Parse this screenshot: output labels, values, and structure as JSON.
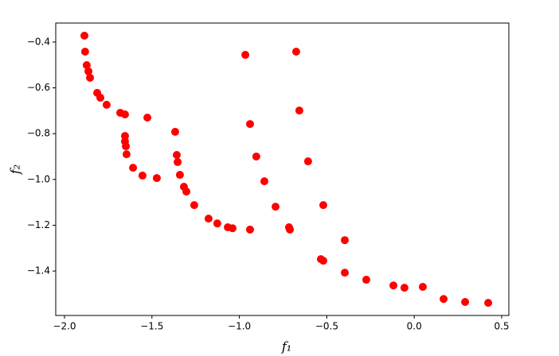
{
  "chart_data": {
    "type": "scatter",
    "xlabel": "f₁",
    "ylabel": "f₂",
    "color": "#ff0000",
    "x": [
      -1.886,
      -1.882,
      -1.873,
      -1.863,
      -1.854,
      -1.813,
      -1.795,
      -1.759,
      -1.681,
      -1.654,
      -1.526,
      -1.654,
      -1.654,
      -1.649,
      -1.645,
      -1.608,
      -1.554,
      -1.472,
      -1.367,
      -1.358,
      -1.353,
      -1.34,
      -1.317,
      -1.303,
      -1.258,
      -1.176,
      -1.126,
      -1.066,
      -1.039,
      -0.966,
      -0.939,
      -0.939,
      -0.903,
      -0.857,
      -0.793,
      -0.716,
      -0.711,
      -0.675,
      -0.657,
      -0.607,
      -0.52,
      -0.534,
      -0.52,
      -0.397,
      -0.397,
      -0.274,
      -0.119,
      -0.056,
      0.049,
      0.168,
      0.291,
      0.423
    ],
    "values": [
      -0.372,
      -0.442,
      -0.501,
      -0.528,
      -0.556,
      -0.622,
      -0.643,
      -0.674,
      -0.709,
      -0.716,
      -0.73,
      -0.81,
      -0.834,
      -0.855,
      -0.89,
      -0.949,
      -0.983,
      -0.994,
      -0.792,
      -0.893,
      -0.924,
      -0.98,
      -1.032,
      -1.053,
      -1.112,
      -1.171,
      -1.192,
      -1.209,
      -1.213,
      -0.456,
      -0.758,
      -1.219,
      -0.9,
      -1.008,
      -1.119,
      -1.209,
      -1.219,
      -0.442,
      -0.699,
      -0.921,
      -1.112,
      -1.348,
      -1.355,
      -1.265,
      -1.407,
      -1.438,
      -1.463,
      -1.473,
      -1.469,
      -1.522,
      -1.535,
      -1.539
    ],
    "xlim": [
      -2.05,
      0.541
    ],
    "ylim": [
      -1.594,
      -0.317
    ],
    "xticks": [
      {
        "value": -2.0,
        "label": "−2.0"
      },
      {
        "value": -1.5,
        "label": "−1.5"
      },
      {
        "value": -1.0,
        "label": "−1.0"
      },
      {
        "value": -0.5,
        "label": "−0.5"
      },
      {
        "value": 0.0,
        "label": "0.0"
      },
      0.5
    ],
    "yticks": [
      {
        "value": -1.4,
        "label": "−1.4"
      },
      {
        "value": -1.2,
        "label": "−1.2"
      },
      {
        "value": -1.0,
        "label": "−1.0"
      },
      {
        "value": -0.8,
        "label": "−0.8"
      },
      {
        "value": -0.6,
        "label": "−0.6"
      },
      {
        "value": -0.4,
        "label": "−0.4"
      }
    ]
  }
}
